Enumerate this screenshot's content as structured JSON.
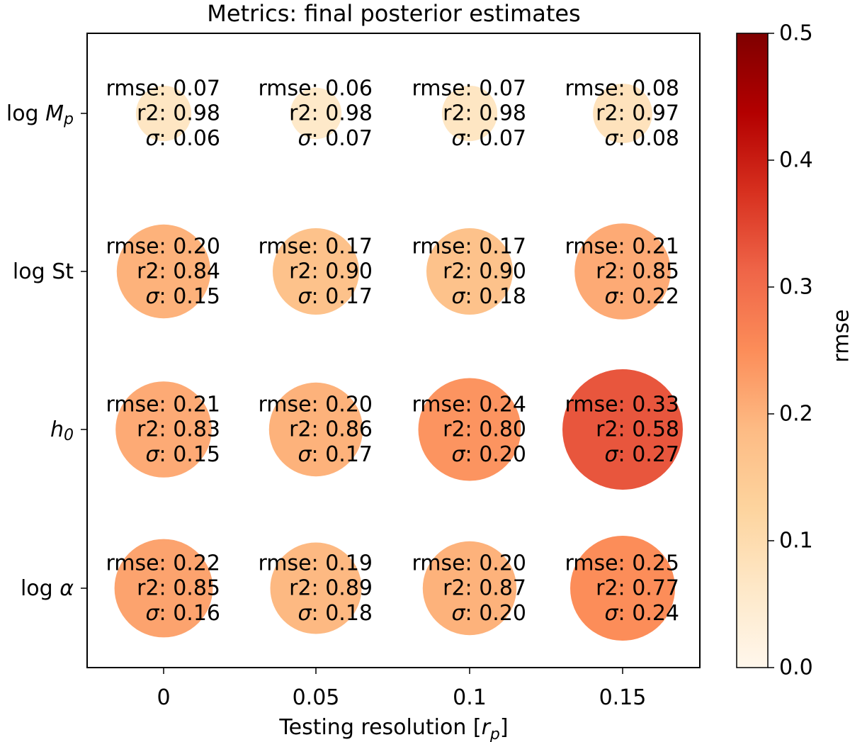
{
  "chart_data": {
    "type": "bubble-heatmap",
    "title": "Metrics: final posterior estimates",
    "xlabel_main": "Testing resolution [",
    "xlabel_var": "r",
    "xlabel_sub": "p",
    "xlabel_end": "]",
    "x_categories": [
      "0",
      "0.05",
      "0.1",
      "0.15"
    ],
    "y_categories": [
      {
        "main": "log ",
        "var": "M",
        "sub": "p"
      },
      {
        "main": "log St",
        "var": "",
        "sub": ""
      },
      {
        "main": "",
        "var": "h",
        "sub": "0"
      },
      {
        "main": "log ",
        "var": "α",
        "sub": ""
      }
    ],
    "label_rmse": "rmse: ",
    "label_r2": "r2: ",
    "label_sigma": "σ",
    "label_sigma_suffix": ": ",
    "values": [
      [
        {
          "rmse": "0.07",
          "r2": "0.98",
          "sigma": "0.06"
        },
        {
          "rmse": "0.06",
          "r2": "0.98",
          "sigma": "0.07"
        },
        {
          "rmse": "0.07",
          "r2": "0.98",
          "sigma": "0.07"
        },
        {
          "rmse": "0.08",
          "r2": "0.97",
          "sigma": "0.08"
        }
      ],
      [
        {
          "rmse": "0.20",
          "r2": "0.84",
          "sigma": "0.15"
        },
        {
          "rmse": "0.17",
          "r2": "0.90",
          "sigma": "0.17"
        },
        {
          "rmse": "0.17",
          "r2": "0.90",
          "sigma": "0.18"
        },
        {
          "rmse": "0.21",
          "r2": "0.85",
          "sigma": "0.22"
        }
      ],
      [
        {
          "rmse": "0.21",
          "r2": "0.83",
          "sigma": "0.15"
        },
        {
          "rmse": "0.20",
          "r2": "0.86",
          "sigma": "0.17"
        },
        {
          "rmse": "0.24",
          "r2": "0.80",
          "sigma": "0.20"
        },
        {
          "rmse": "0.33",
          "r2": "0.58",
          "sigma": "0.27"
        }
      ],
      [
        {
          "rmse": "0.22",
          "r2": "0.85",
          "sigma": "0.16"
        },
        {
          "rmse": "0.19",
          "r2": "0.89",
          "sigma": "0.18"
        },
        {
          "rmse": "0.20",
          "r2": "0.87",
          "sigma": "0.20"
        },
        {
          "rmse": "0.25",
          "r2": "0.77",
          "sigma": "0.24"
        }
      ]
    ],
    "colorbar": {
      "label": "rmse",
      "range": [
        0,
        0.5
      ],
      "ticks": [
        "0.0",
        "0.1",
        "0.2",
        "0.3",
        "0.4",
        "0.5"
      ],
      "colormap": "OrRd",
      "colors": [
        "#fff7ec",
        "#fee8c8",
        "#fdd49e",
        "#fdbb84",
        "#fc8d59",
        "#ef6548",
        "#d7301f",
        "#b30000",
        "#7f0000"
      ]
    }
  }
}
